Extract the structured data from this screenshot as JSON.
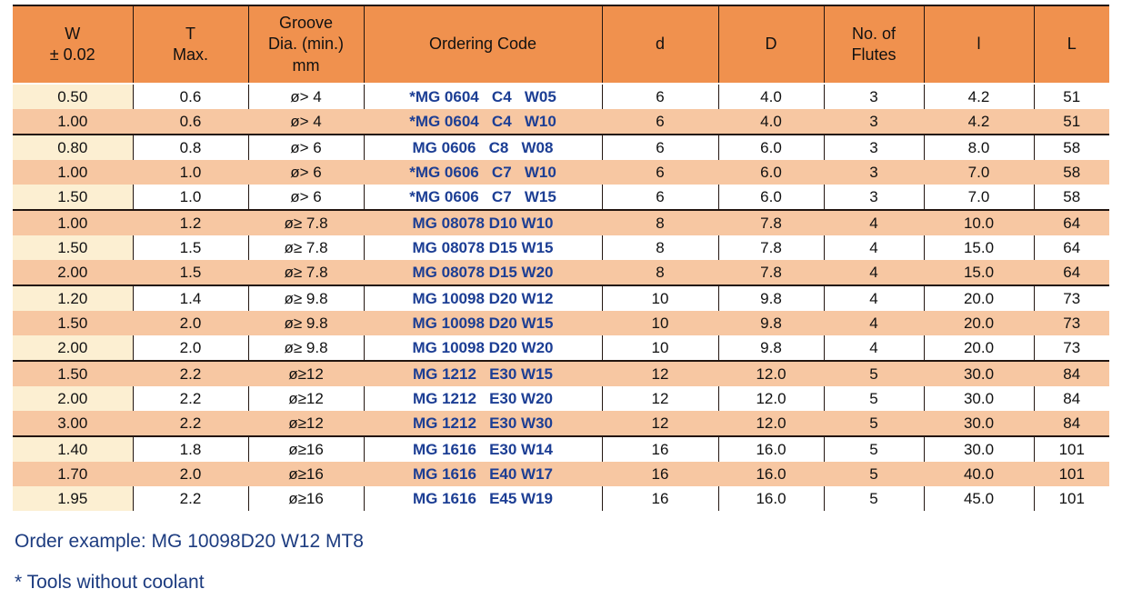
{
  "colors": {
    "header_bg": "#F0914E",
    "row_salmon": "#F7C7A2",
    "row_cream": "#FCEFD2",
    "code_text": "#1C3E94",
    "footer_text": "#1D3C80",
    "grid_line": "#221510"
  },
  "table": {
    "headers": [
      "W\n± 0.02",
      "T\nMax.",
      "Groove\nDia. (min.)\nmm",
      "Ordering Code",
      "d",
      "D",
      "No. of\nFlutes",
      "l",
      "L"
    ],
    "rows": [
      {
        "group": "0604",
        "w": "0.50",
        "t": "0.6",
        "groove": "ø> 4",
        "code": "*MG 0604   C4   W05",
        "d": "6",
        "D": "4.0",
        "flutes": "3",
        "l": "4.2",
        "L": "51"
      },
      {
        "group": "0604",
        "w": "1.00",
        "t": "0.6",
        "groove": "ø> 4",
        "code": "*MG 0604   C4   W10",
        "d": "6",
        "D": "4.0",
        "flutes": "3",
        "l": "4.2",
        "L": "51"
      },
      {
        "group": "0606",
        "w": "0.80",
        "t": "0.8",
        "groove": "ø> 6",
        "code": "MG 0606   C8   W08",
        "d": "6",
        "D": "6.0",
        "flutes": "3",
        "l": "8.0",
        "L": "58"
      },
      {
        "group": "0606",
        "w": "1.00",
        "t": "1.0",
        "groove": "ø> 6",
        "code": "*MG 0606   C7   W10",
        "d": "6",
        "D": "6.0",
        "flutes": "3",
        "l": "7.0",
        "L": "58"
      },
      {
        "group": "0606",
        "w": "1.50",
        "t": "1.0",
        "groove": "ø> 6",
        "code": "*MG 0606   C7   W15",
        "d": "6",
        "D": "6.0",
        "flutes": "3",
        "l": "7.0",
        "L": "58"
      },
      {
        "group": "08078",
        "w": "1.00",
        "t": "1.2",
        "groove": "ø≥ 7.8",
        "code": "MG 08078 D10 W10",
        "d": "8",
        "D": "7.8",
        "flutes": "4",
        "l": "10.0",
        "L": "64"
      },
      {
        "group": "08078",
        "w": "1.50",
        "t": "1.5",
        "groove": "ø≥ 7.8",
        "code": "MG 08078 D15 W15",
        "d": "8",
        "D": "7.8",
        "flutes": "4",
        "l": "15.0",
        "L": "64"
      },
      {
        "group": "08078",
        "w": "2.00",
        "t": "1.5",
        "groove": "ø≥ 7.8",
        "code": "MG 08078 D15 W20",
        "d": "8",
        "D": "7.8",
        "flutes": "4",
        "l": "15.0",
        "L": "64"
      },
      {
        "group": "10098",
        "w": "1.20",
        "t": "1.4",
        "groove": "ø≥ 9.8",
        "code": "MG 10098 D20 W12",
        "d": "10",
        "D": "9.8",
        "flutes": "4",
        "l": "20.0",
        "L": "73"
      },
      {
        "group": "10098",
        "w": "1.50",
        "t": "2.0",
        "groove": "ø≥ 9.8",
        "code": "MG 10098 D20 W15",
        "d": "10",
        "D": "9.8",
        "flutes": "4",
        "l": "20.0",
        "L": "73"
      },
      {
        "group": "10098",
        "w": "2.00",
        "t": "2.0",
        "groove": "ø≥ 9.8",
        "code": "MG 10098 D20 W20",
        "d": "10",
        "D": "9.8",
        "flutes": "4",
        "l": "20.0",
        "L": "73"
      },
      {
        "group": "1212",
        "w": "1.50",
        "t": "2.2",
        "groove": "ø≥12",
        "code": "MG 1212   E30 W15",
        "d": "12",
        "D": "12.0",
        "flutes": "5",
        "l": "30.0",
        "L": "84"
      },
      {
        "group": "1212",
        "w": "2.00",
        "t": "2.2",
        "groove": "ø≥12",
        "code": "MG 1212   E30 W20",
        "d": "12",
        "D": "12.0",
        "flutes": "5",
        "l": "30.0",
        "L": "84"
      },
      {
        "group": "1212",
        "w": "3.00",
        "t": "2.2",
        "groove": "ø≥12",
        "code": "MG 1212   E30 W30",
        "d": "12",
        "D": "12.0",
        "flutes": "5",
        "l": "30.0",
        "L": "84"
      },
      {
        "group": "1616",
        "w": "1.40",
        "t": "1.8",
        "groove": "ø≥16",
        "code": "MG 1616   E30 W14",
        "d": "16",
        "D": "16.0",
        "flutes": "5",
        "l": "30.0",
        "L": "101"
      },
      {
        "group": "1616",
        "w": "1.70",
        "t": "2.0",
        "groove": "ø≥16",
        "code": "MG 1616   E40 W17",
        "d": "16",
        "D": "16.0",
        "flutes": "5",
        "l": "40.0",
        "L": "101"
      },
      {
        "group": "1616",
        "w": "1.95",
        "t": "2.2",
        "groove": "ø≥16",
        "code": "MG 1616   E45 W19",
        "d": "16",
        "D": "16.0",
        "flutes": "5",
        "l": "45.0",
        "L": "101"
      }
    ]
  },
  "footer": {
    "order_example": "Order example: MG 10098D20 W12 MT8",
    "footnote": "* Tools without coolant"
  }
}
